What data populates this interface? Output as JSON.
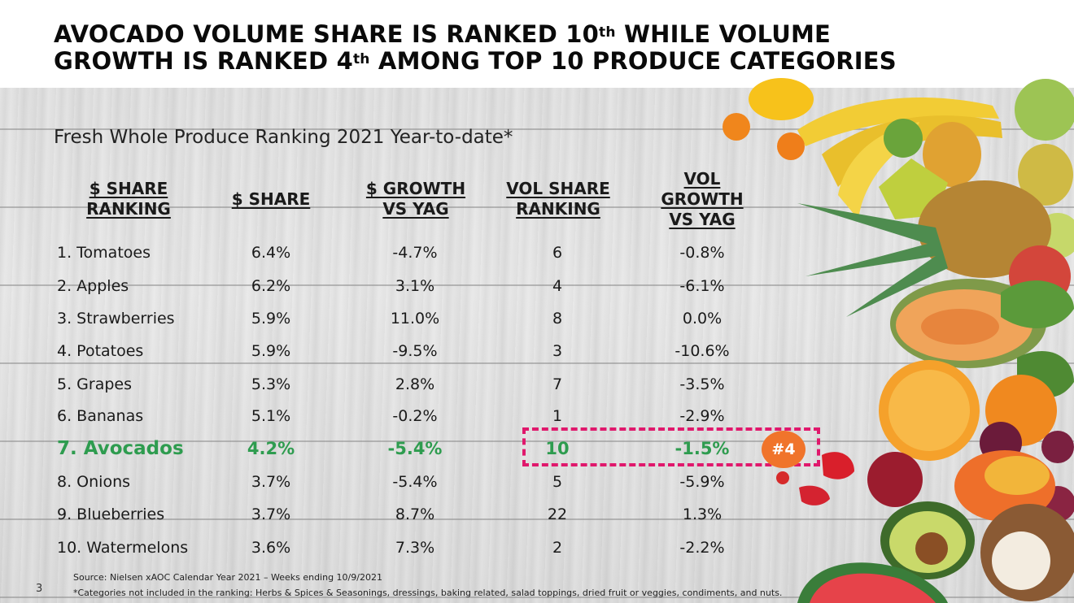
{
  "slide": {
    "title": {
      "line1_pre": "AVOCADO VOLUME SHARE IS RANKED 10",
      "line1_sup": "th",
      "line1_post": " WHILE VOLUME",
      "line2_pre": "GROWTH IS RANKED 4",
      "line2_sup": "th",
      "line2_post": " AMONG TOP 10 PRODUCE CATEGORIES"
    },
    "subtitle": "Fresh Whole Produce Ranking 2021 Year-to-date*",
    "page_number": "3"
  },
  "table": {
    "headers": [
      "$ SHARE\nRANKING",
      "$ SHARE",
      "$ GROWTH\nVS YAG",
      "VOL SHARE\nRANKING",
      "VOL\nGROWTH\nVS YAG"
    ],
    "rows": [
      [
        "1. Tomatoes",
        "6.4%",
        "-4.7%",
        "6",
        "-0.8%"
      ],
      [
        "2. Apples",
        "6.2%",
        "3.1%",
        "4",
        "-6.1%"
      ],
      [
        "3. Strawberries",
        "5.9%",
        "11.0%",
        "8",
        "0.0%"
      ],
      [
        "4. Potatoes",
        "5.9%",
        "-9.5%",
        "3",
        "-10.6%"
      ],
      [
        "5. Grapes",
        "5.3%",
        "2.8%",
        "7",
        "-3.5%"
      ],
      [
        "6. Bananas",
        "5.1%",
        "-0.2%",
        "1",
        "-2.9%"
      ],
      [
        "7. Avocados",
        "4.2%",
        "-5.4%",
        "10",
        "-1.5%"
      ],
      [
        "8. Onions",
        "3.7%",
        "-5.4%",
        "5",
        "-5.9%"
      ],
      [
        "9. Blueberries",
        "3.7%",
        "8.7%",
        "22",
        "1.3%"
      ],
      [
        "10. Watermelons",
        "3.6%",
        "7.3%",
        "2",
        "-2.2%"
      ]
    ],
    "highlight_row": 6,
    "highlight_color": "#2e9c4f"
  },
  "callout": {
    "badge_label": "#4",
    "box_color": "#e0186c",
    "badge_color": "#f0742b"
  },
  "footer": {
    "source": "Source: Nielsen xAOC Calendar Year 2021 – Weeks ending 10/9/2021",
    "footnote": "*Categories not included in the ranking: Herbs & Spices & Seasonings, dressings, baking related, salad toppings, dried fruit or veggies, condiments, and nuts."
  },
  "image": {
    "fruit_icon": "fruit-photo-icon"
  }
}
